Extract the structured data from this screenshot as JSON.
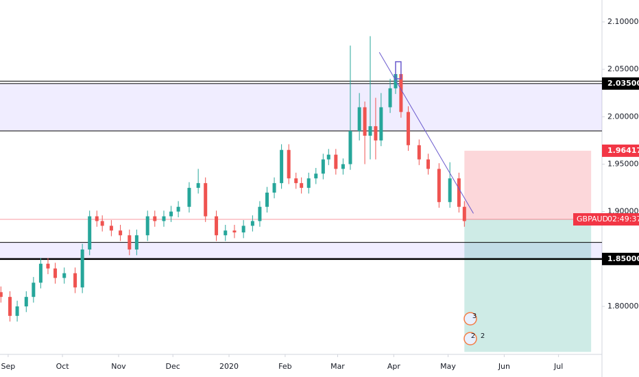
{
  "chart_data": {
    "type": "candlestick",
    "symbol": "GBPAUD",
    "countdown": "02:49:37",
    "x": [
      -4,
      1,
      5,
      10,
      14,
      18,
      22,
      26,
      31,
      37,
      41,
      45,
      49,
      52,
      57,
      62,
      67,
      71,
      77,
      81,
      86,
      90,
      94,
      100,
      105,
      109,
      115,
      120,
      125,
      130,
      135,
      139,
      143,
      147,
      151,
      155,
      159,
      162,
      166,
      170,
      174,
      177,
      181,
      185,
      189,
      194,
      197,
      200,
      203,
      206,
      211,
      214,
      217,
      221,
      227,
      232,
      238,
      244,
      249,
      252
    ],
    "open": [
      1.815,
      1.81,
      1.79,
      1.8,
      1.81,
      1.825,
      1.845,
      1.84,
      1.83,
      1.835,
      1.82,
      1.86,
      1.895,
      1.89,
      1.885,
      1.88,
      1.875,
      1.86,
      1.875,
      1.895,
      1.89,
      1.895,
      1.9,
      1.905,
      1.925,
      1.93,
      1.895,
      1.875,
      1.88,
      1.878,
      1.885,
      1.89,
      1.905,
      1.92,
      1.93,
      1.965,
      1.935,
      1.93,
      1.925,
      1.935,
      1.94,
      1.955,
      1.96,
      1.945,
      1.95,
      1.985,
      2.01,
      1.98,
      1.99,
      1.975,
      2.01,
      2.03,
      2.045,
      2.005,
      1.97,
      1.955,
      1.945,
      1.91,
      1.935,
      1.905
    ],
    "high": [
      1.821,
      1.816,
      1.806,
      1.816,
      1.831,
      1.851,
      1.851,
      1.846,
      1.841,
      1.841,
      1.866,
      1.901,
      1.901,
      1.896,
      1.891,
      1.886,
      1.881,
      1.881,
      1.901,
      1.901,
      1.901,
      1.906,
      1.911,
      1.931,
      1.945,
      1.936,
      1.901,
      1.886,
      1.886,
      1.891,
      1.896,
      1.911,
      1.926,
      1.936,
      1.971,
      1.971,
      1.941,
      1.936,
      1.941,
      1.946,
      1.961,
      1.966,
      1.966,
      1.956,
      2.075,
      2.025,
      2.016,
      2.085,
      2.02,
      2.025,
      2.04,
      2.058,
      2.051,
      2.011,
      1.976,
      1.961,
      1.951,
      1.952,
      1.941,
      1.911
    ],
    "low": [
      1.804,
      1.784,
      1.784,
      1.794,
      1.804,
      1.819,
      1.834,
      1.824,
      1.824,
      1.814,
      1.814,
      1.854,
      1.884,
      1.879,
      1.874,
      1.869,
      1.854,
      1.854,
      1.869,
      1.884,
      1.884,
      1.889,
      1.894,
      1.899,
      1.919,
      1.889,
      1.869,
      1.869,
      1.872,
      1.872,
      1.879,
      1.884,
      1.899,
      1.914,
      1.924,
      1.929,
      1.924,
      1.919,
      1.919,
      1.929,
      1.934,
      1.949,
      1.939,
      1.939,
      1.944,
      1.975,
      1.95,
      1.955,
      1.955,
      1.969,
      2.004,
      2.024,
      1.999,
      1.964,
      1.949,
      1.939,
      1.904,
      1.904,
      1.899,
      1.884
    ],
    "close": [
      1.81,
      1.79,
      1.8,
      1.81,
      1.825,
      1.845,
      1.84,
      1.83,
      1.835,
      1.82,
      1.86,
      1.895,
      1.89,
      1.885,
      1.88,
      1.875,
      1.86,
      1.875,
      1.895,
      1.89,
      1.895,
      1.9,
      1.905,
      1.925,
      1.93,
      1.895,
      1.875,
      1.88,
      1.878,
      1.885,
      1.89,
      1.905,
      1.92,
      1.93,
      1.965,
      1.935,
      1.93,
      1.925,
      1.935,
      1.94,
      1.955,
      1.96,
      1.945,
      1.95,
      1.985,
      2.01,
      1.98,
      1.99,
      1.975,
      2.01,
      2.03,
      2.045,
      2.005,
      1.97,
      1.955,
      1.945,
      1.91,
      1.935,
      1.905,
      1.89
    ],
    "up_color": "#26a69a",
    "down_color": "#ef5350",
    "xlim": [
      -4.5,
      328
    ],
    "ylim": [
      1.7494,
      2.1231
    ],
    "xticks": [
      {
        "value": 0,
        "label": "Sep"
      },
      {
        "value": 30,
        "label": "Oct"
      },
      {
        "value": 61,
        "label": "Nov"
      },
      {
        "value": 91,
        "label": "Dec"
      },
      {
        "value": 122,
        "label": "2020"
      },
      {
        "value": 153,
        "label": "Feb"
      },
      {
        "value": 182,
        "label": "Mar"
      },
      {
        "value": 213,
        "label": "Apr"
      },
      {
        "value": 243,
        "label": "May"
      },
      {
        "value": 274,
        "label": "Jun"
      },
      {
        "value": 304,
        "label": "Jul"
      }
    ],
    "yticks": [
      {
        "value": 2.1,
        "label": "2.10000"
      },
      {
        "value": 2.05,
        "label": "2.05000"
      },
      {
        "value": 2.0,
        "label": "2.00000"
      },
      {
        "value": 1.95,
        "label": "1.95000"
      },
      {
        "value": 1.9,
        "label": "1.90000"
      },
      {
        "value": 1.8,
        "label": "1.80000"
      }
    ],
    "zones": [
      [
        1.985,
        2.035
      ],
      [
        1.85,
        1.8675
      ]
    ],
    "levels": [
      2.0375,
      2.035,
      1.985,
      1.8675,
      1.85
    ],
    "price_tags": [
      {
        "value": 2.035,
        "label": "2.03500",
        "color": "#000000"
      },
      {
        "value": 1.96417,
        "label": "1.96417",
        "color": "#f23645"
      },
      {
        "value": 1.85,
        "label": "1.85000",
        "color": "#000000"
      }
    ],
    "last_price": 1.8918,
    "position": {
      "x": [
        252,
        322
      ],
      "stop": 1.96417,
      "entry": 1.8918,
      "target": 1.752
    },
    "trend_line": {
      "x": [
        205,
        257
      ],
      "y": [
        2.068,
        1.898
      ]
    },
    "marker_box": {
      "x": [
        214,
        217
      ],
      "y": [
        2.04,
        2.058
      ]
    },
    "events": [
      "3",
      "2",
      "2"
    ]
  }
}
